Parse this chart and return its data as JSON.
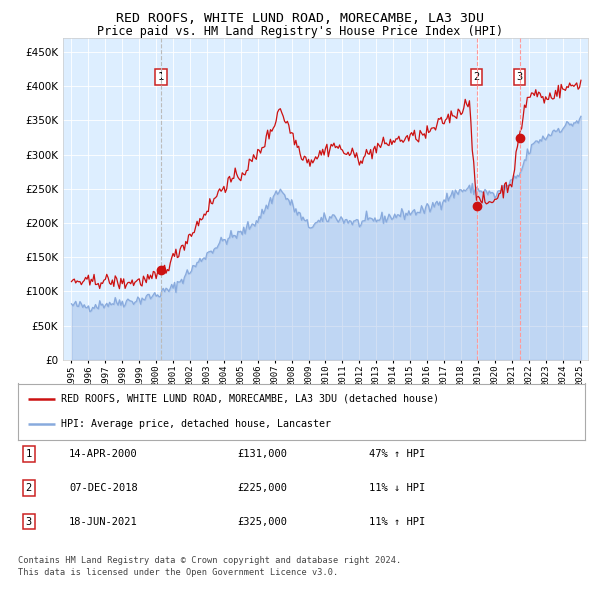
{
  "title": "RED ROOFS, WHITE LUND ROAD, MORECAMBE, LA3 3DU",
  "subtitle": "Price paid vs. HM Land Registry's House Price Index (HPI)",
  "bg_color": "#ddeeff",
  "hpi_color": "#88aadd",
  "price_color": "#cc1111",
  "sale1_date": 2000.29,
  "sale1_price": 131000,
  "sale2_date": 2018.93,
  "sale2_price": 225000,
  "sale3_date": 2021.46,
  "sale3_price": 325000,
  "legend_line1": "RED ROOFS, WHITE LUND ROAD, MORECAMBE, LA3 3DU (detached house)",
  "legend_line2": "HPI: Average price, detached house, Lancaster",
  "table_rows": [
    [
      "1",
      "14-APR-2000",
      "£131,000",
      "47% ↑ HPI"
    ],
    [
      "2",
      "07-DEC-2018",
      "£225,000",
      "11% ↓ HPI"
    ],
    [
      "3",
      "18-JUN-2021",
      "£325,000",
      "11% ↑ HPI"
    ]
  ],
  "footer1": "Contains HM Land Registry data © Crown copyright and database right 2024.",
  "footer2": "This data is licensed under the Open Government Licence v3.0.",
  "ylim": [
    0,
    470000
  ],
  "yticks": [
    0,
    50000,
    100000,
    150000,
    200000,
    250000,
    300000,
    350000,
    400000,
    450000
  ],
  "xlim_start": 1994.5,
  "xlim_end": 2025.5,
  "hpi_keypoints": [
    [
      1995.0,
      80000
    ],
    [
      1996.0,
      78000
    ],
    [
      1997.0,
      82000
    ],
    [
      1998.0,
      85000
    ],
    [
      1999.0,
      88000
    ],
    [
      2000.0,
      95000
    ],
    [
      2001.0,
      105000
    ],
    [
      2002.0,
      130000
    ],
    [
      2003.0,
      155000
    ],
    [
      2004.0,
      175000
    ],
    [
      2005.0,
      185000
    ],
    [
      2006.0,
      205000
    ],
    [
      2007.25,
      250000
    ],
    [
      2007.75,
      235000
    ],
    [
      2008.5,
      210000
    ],
    [
      2009.0,
      195000
    ],
    [
      2009.5,
      200000
    ],
    [
      2010.5,
      210000
    ],
    [
      2011.0,
      205000
    ],
    [
      2012.0,
      200000
    ],
    [
      2013.0,
      205000
    ],
    [
      2014.0,
      210000
    ],
    [
      2015.0,
      215000
    ],
    [
      2016.0,
      220000
    ],
    [
      2017.0,
      235000
    ],
    [
      2018.0,
      248000
    ],
    [
      2018.93,
      250000
    ],
    [
      2019.5,
      245000
    ],
    [
      2020.0,
      240000
    ],
    [
      2020.5,
      250000
    ],
    [
      2021.0,
      260000
    ],
    [
      2021.46,
      270000
    ],
    [
      2021.75,
      290000
    ],
    [
      2022.0,
      305000
    ],
    [
      2022.5,
      320000
    ],
    [
      2023.0,
      325000
    ],
    [
      2023.5,
      335000
    ],
    [
      2024.0,
      340000
    ],
    [
      2024.5,
      345000
    ],
    [
      2025.0,
      350000
    ]
  ],
  "price_keypoints": [
    [
      1995.0,
      115000
    ],
    [
      1996.0,
      113000
    ],
    [
      1997.0,
      116000
    ],
    [
      1998.0,
      112000
    ],
    [
      1999.0,
      115000
    ],
    [
      1999.5,
      117000
    ],
    [
      2000.0,
      120000
    ],
    [
      2000.29,
      131000
    ],
    [
      2000.5,
      133000
    ],
    [
      2001.0,
      148000
    ],
    [
      2002.0,
      182000
    ],
    [
      2003.0,
      220000
    ],
    [
      2004.0,
      255000
    ],
    [
      2005.0,
      270000
    ],
    [
      2006.0,
      300000
    ],
    [
      2007.0,
      345000
    ],
    [
      2007.25,
      370000
    ],
    [
      2007.75,
      345000
    ],
    [
      2008.5,
      305000
    ],
    [
      2009.0,
      290000
    ],
    [
      2009.5,
      298000
    ],
    [
      2010.5,
      315000
    ],
    [
      2011.0,
      305000
    ],
    [
      2012.0,
      295000
    ],
    [
      2012.5,
      300000
    ],
    [
      2013.0,
      310000
    ],
    [
      2014.0,
      320000
    ],
    [
      2015.0,
      325000
    ],
    [
      2016.0,
      330000
    ],
    [
      2017.0,
      350000
    ],
    [
      2018.0,
      365000
    ],
    [
      2018.5,
      380000
    ],
    [
      2018.93,
      225000
    ],
    [
      2019.0,
      230000
    ],
    [
      2019.25,
      235000
    ],
    [
      2019.5,
      228000
    ],
    [
      2020.0,
      235000
    ],
    [
      2020.5,
      250000
    ],
    [
      2021.0,
      260000
    ],
    [
      2021.46,
      325000
    ],
    [
      2021.75,
      370000
    ],
    [
      2022.0,
      385000
    ],
    [
      2022.5,
      390000
    ],
    [
      2023.0,
      380000
    ],
    [
      2023.5,
      390000
    ],
    [
      2024.0,
      395000
    ],
    [
      2024.5,
      400000
    ],
    [
      2025.0,
      405000
    ]
  ]
}
